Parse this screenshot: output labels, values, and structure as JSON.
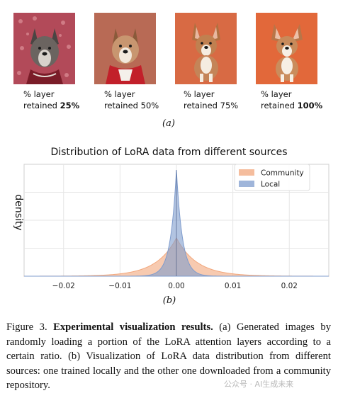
{
  "panel_a": {
    "images": [
      {
        "line1": "% layer",
        "line2_prefix": "retained ",
        "line2_value": "25%"
      },
      {
        "line1": "% layer",
        "line2_prefix": "retained ",
        "line2_value": "50%"
      },
      {
        "line1": "% layer",
        "line2_prefix": "retained ",
        "line2_value": "75%"
      },
      {
        "line1": "% layer",
        "line2_prefix": "retained ",
        "line2_value": "100%"
      }
    ],
    "label": "(a)"
  },
  "panel_b_label": "(b)",
  "chart_data": {
    "type": "area",
    "title": "Distribution of LoRA data from different sources",
    "xlabel": "",
    "ylabel": "density",
    "xlim": [
      -0.027,
      0.027
    ],
    "x_ticks": [
      -0.02,
      -0.01,
      0.0,
      0.01,
      0.02
    ],
    "x_tick_labels": [
      "−0.02",
      "−0.01",
      "0.00",
      "0.01",
      "0.02"
    ],
    "grid": true,
    "legend_position": "top-right",
    "series": [
      {
        "name": "Community",
        "color": "#f2a77c",
        "distribution": "laplace",
        "center": 0.0,
        "scale": 0.0036,
        "peak_fraction": 0.36
      },
      {
        "name": "Local",
        "color": "#7f9ccd",
        "distribution": "laplace",
        "center": 0.0,
        "scale": 0.00105,
        "peak_fraction": 1.0
      }
    ]
  },
  "caption": {
    "prefix": "Figure 3.",
    "bold": "Experimental visualization results.",
    "body": "(a) Generated images by randomly loading a portion of the LoRA attention layers according to a certain ratio. (b) Visualization of LoRA data distribution from different sources: one trained locally and the other one downloaded from a community repository."
  },
  "watermark": "公众号 · AI生成未来",
  "colors": {
    "tile1_bg": "#b24a59",
    "tile2_bg": "#b86a55",
    "tile3_bg": "#d86a44",
    "tile4_bg": "#e2683a"
  }
}
